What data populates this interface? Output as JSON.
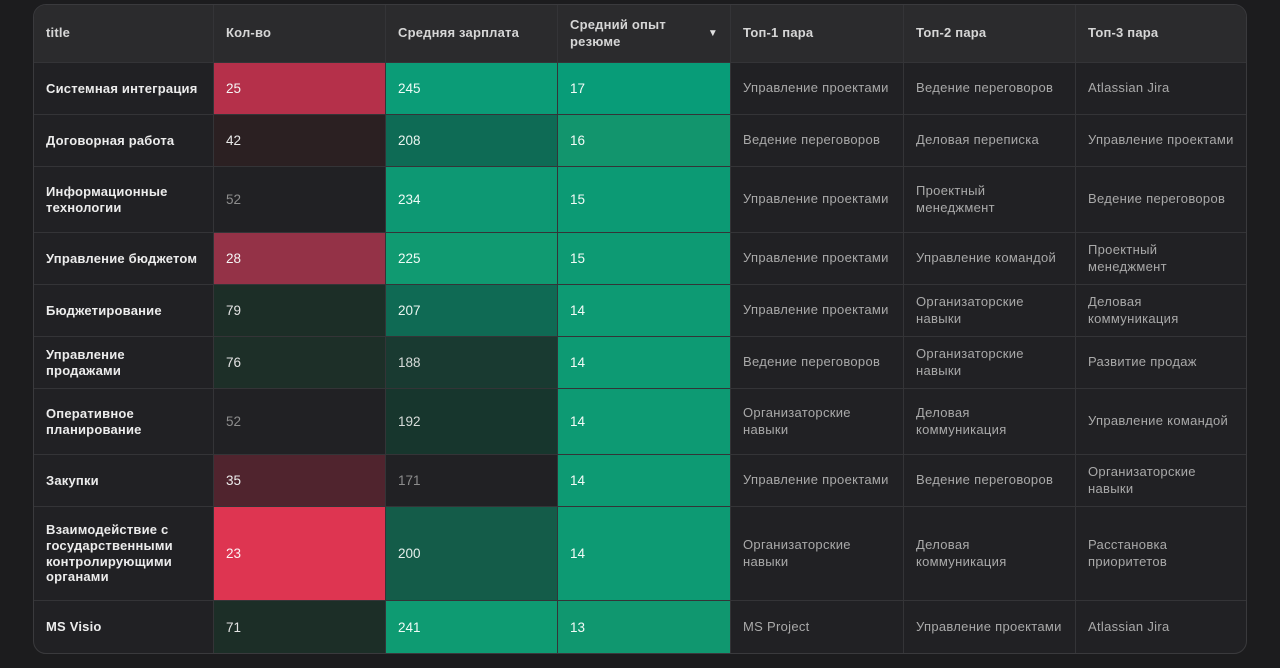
{
  "table": {
    "sort_icon": "▼",
    "columns": [
      {
        "label": "title"
      },
      {
        "label": "Кол-во"
      },
      {
        "label": "Средняя зарплата"
      },
      {
        "label": "Средний опыт резюме",
        "sorted": "desc"
      },
      {
        "label": "Топ-1 пара"
      },
      {
        "label": "Топ-2 пара"
      },
      {
        "label": "Топ-3 пара"
      }
    ],
    "rows": [
      {
        "title": "Системная интеграция",
        "count": {
          "text": "25",
          "bg": "#b5304a",
          "fg": "#f5f5f5"
        },
        "salary": {
          "text": "245",
          "bg": "#0b9c77",
          "fg": "#eefbf6"
        },
        "experience": {
          "text": "17",
          "bg": "#089c78",
          "fg": "#f2fbf7"
        },
        "top1": "Управление проектами",
        "top2": "Ведение переговоров",
        "top3": "Atlassian Jira"
      },
      {
        "title": "Договорная работа",
        "count": {
          "text": "42",
          "bg": "#2b2022",
          "fg": "#e8e8e8"
        },
        "salary": {
          "text": "208",
          "bg": "#0e6b55",
          "fg": "#e9f5f0"
        },
        "experience": {
          "text": "16",
          "bg": "#12956d",
          "fg": "#f2fbf7"
        },
        "top1": "Ведение переговоров",
        "top2": "Деловая переписка",
        "top3": "Управление проектами"
      },
      {
        "title": "Информационные технологии",
        "count": {
          "text": "52",
          "bg": "#212124",
          "fg": "#8d8d8d"
        },
        "salary": {
          "text": "234",
          "bg": "#0d9873",
          "fg": "#eefbf6"
        },
        "experience": {
          "text": "15",
          "bg": "#0c9a74",
          "fg": "#f2fbf7"
        },
        "top1": "Управление проектами",
        "top2": "Проектный менеджмент",
        "top3": "Ведение переговоров"
      },
      {
        "title": "Управление бюджетом",
        "count": {
          "text": "28",
          "bg": "#943247",
          "fg": "#f5f5f5"
        },
        "salary": {
          "text": "225",
          "bg": "#109a71",
          "fg": "#eefbf6"
        },
        "experience": {
          "text": "15",
          "bg": "#0d9a73",
          "fg": "#f2fbf7"
        },
        "top1": "Управление проектами",
        "top2": "Управление командой",
        "top3": "Проектный менеджмент"
      },
      {
        "title": "Бюджетирование",
        "count": {
          "text": "79",
          "bg": "#1c2e27",
          "fg": "#e3e3e3"
        },
        "salary": {
          "text": "207",
          "bg": "#0f6a54",
          "fg": "#e9f5f0"
        },
        "experience": {
          "text": "14",
          "bg": "#0d9a73",
          "fg": "#f2fbf7"
        },
        "top1": "Управление проектами",
        "top2": "Организаторские навыки",
        "top3": "Деловая коммуникация"
      },
      {
        "title": "Управление продажами",
        "count": {
          "text": "76",
          "bg": "#1d2f28",
          "fg": "#e3e3e3"
        },
        "salary": {
          "text": "188",
          "bg": "#193a31",
          "fg": "#d6dbd9"
        },
        "experience": {
          "text": "14",
          "bg": "#0d9a73",
          "fg": "#f2fbf7"
        },
        "top1": "Ведение переговоров",
        "top2": "Организаторские навыки",
        "top3": "Развитие продаж"
      },
      {
        "title": "Оперативное планирование",
        "count": {
          "text": "52",
          "bg": "#212124",
          "fg": "#8d8d8d"
        },
        "salary": {
          "text": "192",
          "bg": "#17362d",
          "fg": "#d6dbd9"
        },
        "experience": {
          "text": "14",
          "bg": "#0d9a73",
          "fg": "#f2fbf7"
        },
        "top1": "Организаторские навыки",
        "top2": "Деловая коммуникация",
        "top3": "Управление командой"
      },
      {
        "title": "Закупки",
        "count": {
          "text": "35",
          "bg": "#50242e",
          "fg": "#ededed"
        },
        "salary": {
          "text": "171",
          "bg": "#212124",
          "fg": "#8d8d8d"
        },
        "experience": {
          "text": "14",
          "bg": "#0d9a73",
          "fg": "#f2fbf7"
        },
        "top1": "Управление проектами",
        "top2": "Ведение переговоров",
        "top3": "Организаторские навыки"
      },
      {
        "title": "Взаимодействие с государственными контролирующими органами",
        "count": {
          "text": "23",
          "bg": "#de3551",
          "fg": "#fdf2f4"
        },
        "salary": {
          "text": "200",
          "bg": "#145c49",
          "fg": "#e4efeb"
        },
        "experience": {
          "text": "14",
          "bg": "#0d9a73",
          "fg": "#f2fbf7"
        },
        "top1": "Организаторские навыки",
        "top2": "Деловая коммуникация",
        "top3": "Расстановка приоритетов"
      },
      {
        "title": "MS Visio",
        "count": {
          "text": "71",
          "bg": "#1c2e27",
          "fg": "#e3e3e3"
        },
        "salary": {
          "text": "241",
          "bg": "#0e9b72",
          "fg": "#eefbf6"
        },
        "experience": {
          "text": "13",
          "bg": "#10976f",
          "fg": "#f2fbf7"
        },
        "top1": "MS Project",
        "top2": "Управление проектами",
        "top3": "Atlassian Jira"
      }
    ]
  },
  "colors": {
    "page_bg": "#1c1c1e",
    "header_bg": "#2b2b2d",
    "body_bg": "#212124",
    "border": "#343437",
    "positive_strong": "#0b9c77",
    "negative_strong": "#de3551"
  }
}
